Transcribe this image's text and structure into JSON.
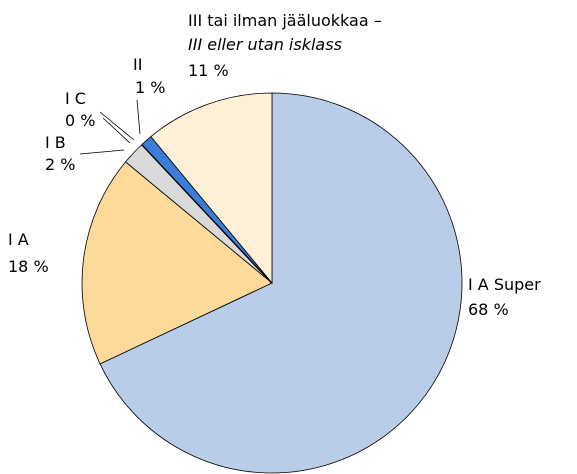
{
  "chart_data": {
    "type": "pie",
    "categories": [
      "I A Super",
      "I A",
      "I B",
      "I C",
      "II",
      "III tai ilman jääluokkaa –"
    ],
    "categories_sv": [
      null,
      null,
      null,
      null,
      null,
      "III eller utan isklass"
    ],
    "values": [
      68,
      18,
      2,
      0,
      1,
      11
    ],
    "value_labels": [
      "68 %",
      "18 %",
      "2 %",
      "0 %",
      "1 %",
      "11 %"
    ],
    "colors": [
      "#b9cde8",
      "#fdd99a",
      "#d9d9d9",
      "#000000",
      "#3b7dd8",
      "#fef0d6"
    ]
  }
}
